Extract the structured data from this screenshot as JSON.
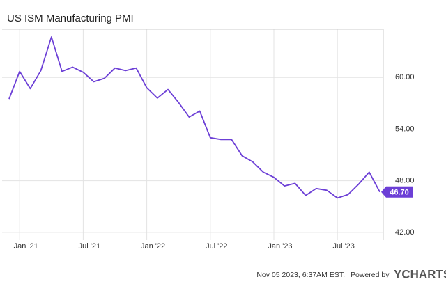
{
  "chart_data": {
    "type": "line",
    "title": "US ISM Manufacturing PMI",
    "categories": [
      null,
      "Jan '21",
      null,
      null,
      null,
      null,
      null,
      "Jul '21",
      null,
      null,
      null,
      null,
      null,
      "Jan '22",
      null,
      null,
      null,
      null,
      null,
      "Jul '22",
      null,
      null,
      null,
      null,
      null,
      "Jan '23",
      null,
      null,
      null,
      null,
      null,
      "Jul '23",
      null,
      null,
      null,
      null
    ],
    "series": [
      {
        "name": "US ISM Manufacturing PMI",
        "color": "#6c3fd6",
        "values": [
          57.5,
          60.7,
          58.7,
          60.8,
          64.7,
          60.7,
          61.2,
          60.6,
          59.5,
          59.9,
          61.1,
          60.8,
          61.1,
          58.8,
          57.6,
          58.6,
          57.1,
          55.4,
          56.1,
          53.0,
          52.8,
          52.8,
          50.9,
          50.2,
          49.0,
          48.4,
          47.4,
          47.7,
          46.3,
          47.1,
          46.9,
          46.0,
          46.4,
          47.6,
          49.0,
          46.7
        ],
        "value_labels": [
          null,
          null,
          null,
          null,
          null,
          null,
          null,
          null,
          null,
          null,
          null,
          null,
          null,
          null,
          null,
          null,
          null,
          null,
          null,
          null,
          null,
          null,
          null,
          null,
          null,
          null,
          null,
          null,
          null,
          null,
          null,
          null,
          null,
          null,
          null,
          "46.70"
        ]
      }
    ],
    "ylim": [
      41.1,
      65.6
    ],
    "yticks": [
      {
        "value": 42,
        "label": "42.00"
      },
      {
        "value": 48,
        "label": "48.00"
      },
      {
        "value": 54,
        "label": "54.00"
      },
      {
        "value": 60,
        "label": "60.00"
      }
    ],
    "grid": true,
    "footer": {
      "timestamp": "Nov 05 2023, 6:37AM EST.",
      "powered": "Powered by",
      "brand": "YCHARTS"
    }
  }
}
